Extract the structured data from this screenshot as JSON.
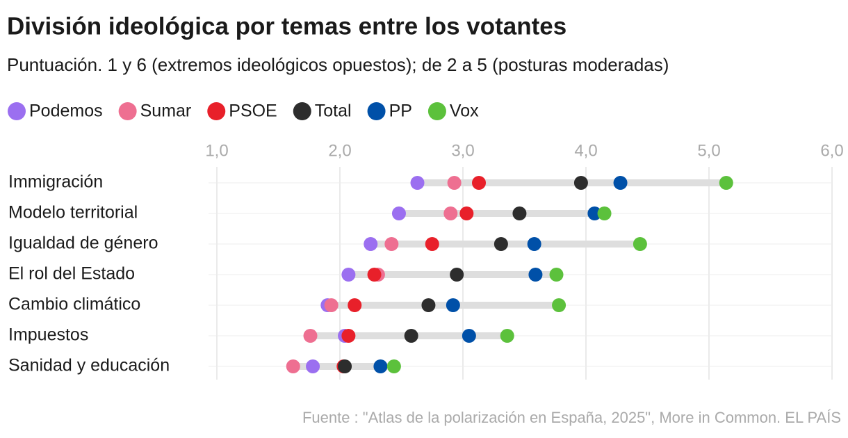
{
  "chart_data": {
    "type": "dot",
    "title": "División ideológica por temas entre los votantes",
    "subtitle": "Puntuación. 1 y 6 (extremos ideológicos opuestos); de 2 a 5 (posturas moderadas)",
    "source": "Fuente : \"Atlas de la polarización en España, 2025\", More in Common. EL PAÍS",
    "categories": [
      "Immigración",
      "Modelo territorial",
      "Igualdad de género",
      "El rol del Estado",
      "Cambio climático",
      "Impuestos",
      "Sanidad y educación"
    ],
    "series": [
      {
        "name": "Podemos",
        "color": "#9b6ff0",
        "values": [
          2.63,
          2.48,
          2.25,
          2.07,
          1.9,
          2.04,
          1.78
        ]
      },
      {
        "name": "Sumar",
        "color": "#ee6f91",
        "values": [
          2.93,
          2.9,
          2.42,
          2.31,
          1.93,
          1.76,
          1.62
        ]
      },
      {
        "name": "PSOE",
        "color": "#e8202a",
        "values": [
          3.13,
          3.03,
          2.75,
          2.28,
          2.12,
          2.07,
          2.03
        ]
      },
      {
        "name": "Total",
        "color": "#2d2d2d",
        "values": [
          3.96,
          3.46,
          3.31,
          2.95,
          2.72,
          2.58,
          2.04
        ]
      },
      {
        "name": "PP",
        "color": "#0050a8",
        "values": [
          4.28,
          4.07,
          3.58,
          3.59,
          2.92,
          3.05,
          2.33
        ]
      },
      {
        "name": "Vox",
        "color": "#5cc13c",
        "values": [
          5.14,
          4.15,
          4.44,
          3.76,
          3.78,
          3.36,
          2.44
        ]
      }
    ],
    "xlim": [
      1,
      6
    ],
    "xticks": [
      {
        "value": 1,
        "label": "1,0"
      },
      {
        "value": 2,
        "label": "2,0"
      },
      {
        "value": 3,
        "label": "3,0"
      },
      {
        "value": 4,
        "label": "4,0"
      },
      {
        "value": 5,
        "label": "5,0"
      },
      {
        "value": 6,
        "label": "6,0"
      }
    ],
    "grid": true
  }
}
